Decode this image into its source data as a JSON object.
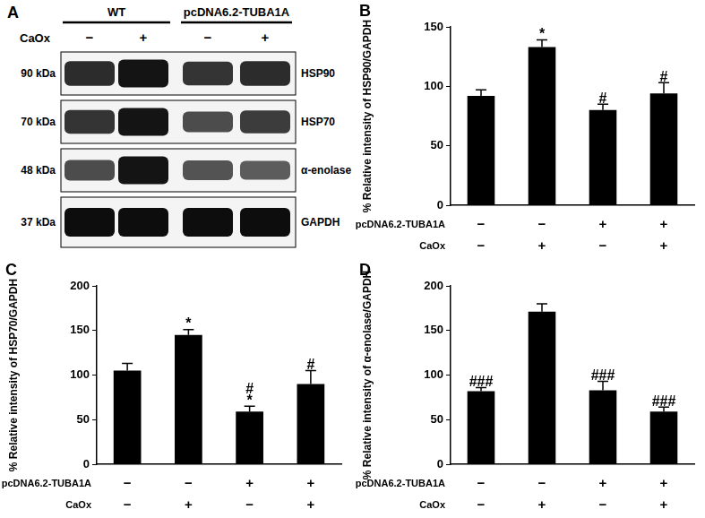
{
  "blot": {
    "panel": "A",
    "groups": [
      {
        "label": "WT",
        "lanes": [
          0,
          1
        ]
      },
      {
        "label": "pcDNA6.2-TUBA1A",
        "lanes": [
          2,
          3
        ]
      }
    ],
    "lane_row_label": "CaOx",
    "lanes": [
      "−",
      "+",
      "−",
      "+"
    ],
    "rows": [
      {
        "size": "90 kDa",
        "protein": "HSP90",
        "intensity": [
          0.8,
          0.95,
          0.75,
          0.8
        ]
      },
      {
        "size": "70 kDa",
        "protein": "HSP70",
        "intensity": [
          0.75,
          0.95,
          0.6,
          0.7
        ]
      },
      {
        "size": "48 kDa",
        "protein": "α-enolase",
        "intensity": [
          0.6,
          0.95,
          0.55,
          0.5
        ]
      },
      {
        "size": "37 kDa",
        "protein": "GAPDH",
        "intensity": [
          1,
          1,
          1,
          1
        ]
      }
    ]
  },
  "chart_data": [
    {
      "type": "bar",
      "title": "B",
      "y_label": "% Relative intensity of HSP90/GAPDH",
      "categories": [
        null,
        null,
        null,
        null
      ],
      "condition_rows": [
        {
          "label": "pcDNA6.2-TUBA1A",
          "values": [
            "−",
            "−",
            "+",
            "+"
          ]
        },
        {
          "label": "CaOx",
          "values": [
            "−",
            "+",
            "−",
            "+"
          ]
        }
      ],
      "values": [
        92,
        133,
        80,
        94
      ],
      "errors": [
        5,
        6,
        5,
        9
      ],
      "marks": [
        [],
        [
          "*"
        ],
        [
          "#"
        ],
        [
          "#"
        ]
      ],
      "color": "#000000",
      "ylim": [
        0,
        150
      ],
      "yticks": [
        0,
        50,
        100,
        150
      ],
      "grid": false
    },
    {
      "type": "bar",
      "title": "C",
      "y_label": "% Relative intensity of HSP70/GAPDH",
      "categories": [
        null,
        null,
        null,
        null
      ],
      "condition_rows": [
        {
          "label": "pcDNA6.2-TUBA1A",
          "values": [
            "−",
            "−",
            "+",
            "+"
          ]
        },
        {
          "label": "CaOx",
          "values": [
            "−",
            "+",
            "−",
            "+"
          ]
        }
      ],
      "values": [
        105,
        145,
        59,
        90
      ],
      "errors": [
        8,
        6,
        6,
        15
      ],
      "marks": [
        [],
        [
          "*"
        ],
        [
          "*",
          "#"
        ],
        [
          "#"
        ]
      ],
      "color": "#000000",
      "ylim": [
        0,
        200
      ],
      "yticks": [
        0,
        50,
        100,
        150,
        200
      ],
      "grid": false
    },
    {
      "type": "bar",
      "title": "D",
      "y_label": "% Relative intensity of α-enolase/GAPDH",
      "categories": [
        null,
        null,
        null,
        null
      ],
      "condition_rows": [
        {
          "label": "pcDNA6.2-TUBA1A",
          "values": [
            "−",
            "−",
            "+",
            "+"
          ]
        },
        {
          "label": "CaOx",
          "values": [
            "−",
            "+",
            "−",
            "+"
          ]
        }
      ],
      "values": [
        82,
        171,
        83,
        59
      ],
      "errors": [
        4,
        9,
        10,
        5
      ],
      "marks": [
        [
          "###"
        ],
        [],
        [
          "###"
        ],
        [
          "###"
        ]
      ],
      "color": "#000000",
      "ylim": [
        0,
        200
      ],
      "yticks": [
        0,
        50,
        100,
        150,
        200
      ],
      "grid": false
    }
  ]
}
